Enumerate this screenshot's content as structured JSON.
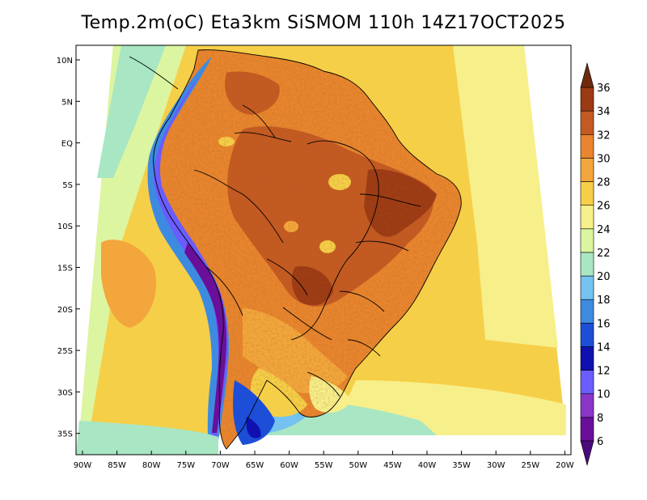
{
  "title": "Temp.2m(oC) Eta3km SiSMOM 110h 14Z17OCT2025",
  "lat_labels": [
    "10N",
    "5N",
    "EQ",
    "5S",
    "10S",
    "15S",
    "20S",
    "25S",
    "30S",
    "35S"
  ],
  "lon_labels": [
    "90W",
    "85W",
    "80W",
    "75W",
    "70W",
    "65W",
    "60W",
    "55W",
    "50W",
    "45W",
    "40W",
    "35W",
    "30W",
    "25W",
    "20W"
  ],
  "colorbar": {
    "labels": [
      "6",
      "8",
      "10",
      "12",
      "14",
      "16",
      "18",
      "20",
      "22",
      "24",
      "26",
      "28",
      "30",
      "32",
      "34",
      "36"
    ],
    "bins": [
      {
        "value": 7,
        "color": "#6a0f9a"
      },
      {
        "value": 9,
        "color": "#8a34c8"
      },
      {
        "value": 11,
        "color": "#6a5cff"
      },
      {
        "value": 13,
        "color": "#1010b0"
      },
      {
        "value": 15,
        "color": "#1d4ed8"
      },
      {
        "value": 17,
        "color": "#3d8be0"
      },
      {
        "value": 19,
        "color": "#74c2f0"
      },
      {
        "value": 21,
        "color": "#a8e6c4"
      },
      {
        "value": 23,
        "color": "#dcf5a0"
      },
      {
        "value": 25,
        "color": "#f7ef8a"
      },
      {
        "value": 27,
        "color": "#f6cf48"
      },
      {
        "value": 29,
        "color": "#f2a63c"
      },
      {
        "value": 31,
        "color": "#e8852e"
      },
      {
        "value": 33,
        "color": "#c45a22"
      },
      {
        "value": 35,
        "color": "#9c3a14"
      }
    ],
    "under_color": "#4b0a7a",
    "over_color": "#6e2a0e"
  }
}
